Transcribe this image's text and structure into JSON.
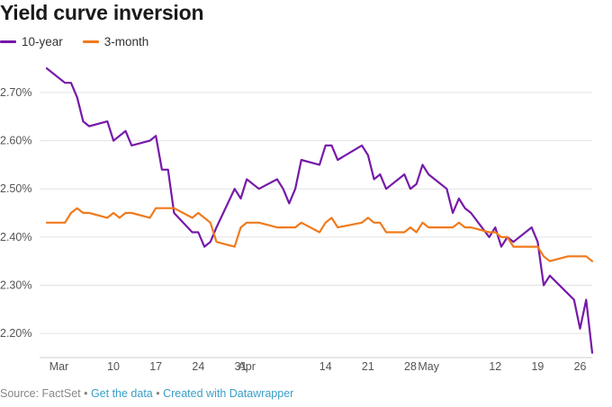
{
  "chart_data": {
    "type": "line",
    "title": "Yield curve inversion",
    "xlabel": "",
    "ylabel": "",
    "ylim": [
      2.15,
      2.78
    ],
    "yticks": [
      "2.20%",
      "2.30%",
      "2.40%",
      "2.50%",
      "2.60%",
      "2.70%"
    ],
    "ytick_values": [
      2.2,
      2.3,
      2.4,
      2.5,
      2.6,
      2.7
    ],
    "xlim": [
      -2,
      88
    ],
    "xticks": [
      "Mar",
      "10",
      "17",
      "24",
      "31",
      "Apr",
      "14",
      "21",
      "28",
      "May",
      "12",
      "19",
      "26"
    ],
    "xtick_values": [
      0,
      9,
      16,
      23,
      30,
      31,
      44,
      51,
      58,
      61,
      72,
      79,
      86
    ],
    "grid": true,
    "legend_position": "top-left",
    "series": [
      {
        "name": "10-year",
        "color": "#7619a8",
        "points": [
          [
            -2,
            2.75
          ],
          [
            1,
            2.72
          ],
          [
            2,
            2.72
          ],
          [
            3,
            2.69
          ],
          [
            4,
            2.64
          ],
          [
            5,
            2.63
          ],
          [
            8,
            2.64
          ],
          [
            9,
            2.6
          ],
          [
            11,
            2.62
          ],
          [
            12,
            2.59
          ],
          [
            15,
            2.6
          ],
          [
            16,
            2.61
          ],
          [
            17,
            2.54
          ],
          [
            18,
            2.54
          ],
          [
            19,
            2.45
          ],
          [
            22,
            2.41
          ],
          [
            23,
            2.41
          ],
          [
            24,
            2.38
          ],
          [
            25,
            2.39
          ],
          [
            26,
            2.42
          ],
          [
            29,
            2.5
          ],
          [
            30,
            2.48
          ],
          [
            31,
            2.52
          ],
          [
            33,
            2.5
          ],
          [
            36,
            2.52
          ],
          [
            37,
            2.5
          ],
          [
            38,
            2.47
          ],
          [
            39,
            2.5
          ],
          [
            40,
            2.56
          ],
          [
            43,
            2.55
          ],
          [
            44,
            2.59
          ],
          [
            45,
            2.59
          ],
          [
            46,
            2.56
          ],
          [
            50,
            2.59
          ],
          [
            51,
            2.57
          ],
          [
            52,
            2.52
          ],
          [
            53,
            2.53
          ],
          [
            54,
            2.5
          ],
          [
            57,
            2.53
          ],
          [
            58,
            2.5
          ],
          [
            59,
            2.51
          ],
          [
            60,
            2.55
          ],
          [
            61,
            2.53
          ],
          [
            64,
            2.5
          ],
          [
            65,
            2.45
          ],
          [
            66,
            2.48
          ],
          [
            67,
            2.46
          ],
          [
            68,
            2.45
          ],
          [
            71,
            2.4
          ],
          [
            72,
            2.42
          ],
          [
            73,
            2.38
          ],
          [
            74,
            2.4
          ],
          [
            75,
            2.39
          ],
          [
            78,
            2.42
          ],
          [
            79,
            2.39
          ],
          [
            80,
            2.3
          ],
          [
            81,
            2.32
          ],
          [
            85,
            2.27
          ],
          [
            86,
            2.21
          ],
          [
            87,
            2.27
          ],
          [
            88,
            2.16
          ]
        ]
      },
      {
        "name": "3-month",
        "color": "#f07a1c",
        "points": [
          [
            -2,
            2.43
          ],
          [
            1,
            2.43
          ],
          [
            2,
            2.45
          ],
          [
            3,
            2.46
          ],
          [
            4,
            2.45
          ],
          [
            5,
            2.45
          ],
          [
            8,
            2.44
          ],
          [
            9,
            2.45
          ],
          [
            10,
            2.44
          ],
          [
            11,
            2.45
          ],
          [
            12,
            2.45
          ],
          [
            15,
            2.44
          ],
          [
            16,
            2.46
          ],
          [
            19,
            2.46
          ],
          [
            22,
            2.44
          ],
          [
            23,
            2.45
          ],
          [
            25,
            2.43
          ],
          [
            26,
            2.39
          ],
          [
            29,
            2.38
          ],
          [
            30,
            2.42
          ],
          [
            31,
            2.43
          ],
          [
            33,
            2.43
          ],
          [
            36,
            2.42
          ],
          [
            37,
            2.42
          ],
          [
            39,
            2.42
          ],
          [
            40,
            2.43
          ],
          [
            43,
            2.41
          ],
          [
            44,
            2.43
          ],
          [
            45,
            2.44
          ],
          [
            46,
            2.42
          ],
          [
            50,
            2.43
          ],
          [
            51,
            2.44
          ],
          [
            52,
            2.43
          ],
          [
            53,
            2.43
          ],
          [
            54,
            2.41
          ],
          [
            57,
            2.41
          ],
          [
            58,
            2.42
          ],
          [
            59,
            2.41
          ],
          [
            60,
            2.43
          ],
          [
            61,
            2.42
          ],
          [
            64,
            2.42
          ],
          [
            65,
            2.42
          ],
          [
            66,
            2.43
          ],
          [
            67,
            2.42
          ],
          [
            68,
            2.42
          ],
          [
            71,
            2.41
          ],
          [
            72,
            2.41
          ],
          [
            73,
            2.4
          ],
          [
            74,
            2.4
          ],
          [
            75,
            2.38
          ],
          [
            78,
            2.38
          ],
          [
            79,
            2.38
          ],
          [
            80,
            2.36
          ],
          [
            81,
            2.35
          ],
          [
            84,
            2.36
          ],
          [
            86,
            2.36
          ],
          [
            87,
            2.36
          ],
          [
            88,
            2.35
          ]
        ]
      }
    ]
  },
  "footer": {
    "source": "Source: FactSet",
    "sep1": " • ",
    "get_data": "Get the data",
    "sep2": " • ",
    "created": "Created with Datawrapper"
  }
}
